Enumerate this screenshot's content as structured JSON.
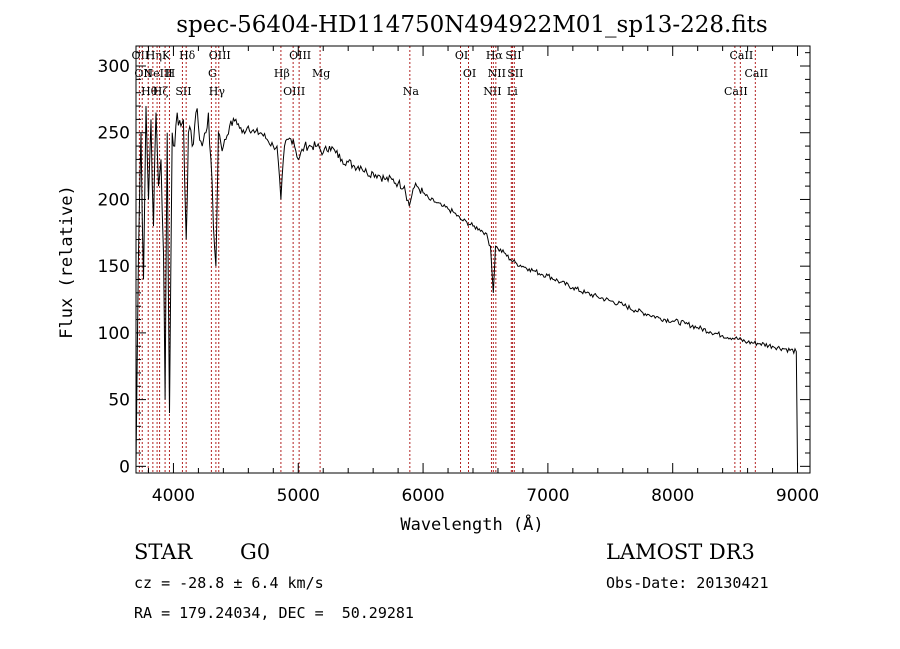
{
  "chart_data": {
    "type": "line",
    "title": "spec-56404-HD114750N494922M01_sp13-228.fits",
    "xlabel": "Wavelength (Å)",
    "ylabel": "Flux (relative)",
    "xlim": [
      3700,
      9100
    ],
    "ylim": [
      -5,
      315
    ],
    "x_ticks": [
      4000,
      5000,
      6000,
      7000,
      8000,
      9000
    ],
    "y_ticks": [
      0,
      50,
      100,
      150,
      200,
      250,
      300
    ],
    "series": [
      {
        "name": "spectrum",
        "x": [
          3700,
          3720,
          3740,
          3760,
          3780,
          3800,
          3820,
          3840,
          3860,
          3880,
          3900,
          3920,
          3933,
          3950,
          3968,
          3990,
          4010,
          4030,
          4060,
          4080,
          4102,
          4120,
          4150,
          4180,
          4200,
          4230,
          4260,
          4280,
          4300,
          4320,
          4340,
          4360,
          4400,
          4450,
          4500,
          4550,
          4600,
          4650,
          4700,
          4750,
          4800,
          4830,
          4861,
          4890,
          4920,
          4960,
          5000,
          5050,
          5100,
          5150,
          5200,
          5250,
          5300,
          5350,
          5400,
          5450,
          5500,
          5550,
          5600,
          5650,
          5700,
          5750,
          5800,
          5850,
          5890,
          5920,
          5950,
          6000,
          6050,
          6100,
          6150,
          6200,
          6250,
          6300,
          6350,
          6400,
          6450,
          6500,
          6540,
          6563,
          6580,
          6600,
          6650,
          6700,
          6750,
          6800,
          6850,
          6900,
          6950,
          7000,
          7100,
          7200,
          7300,
          7400,
          7500,
          7600,
          7700,
          7800,
          7900,
          8000,
          8100,
          8200,
          8300,
          8400,
          8500,
          8600,
          8700,
          8800,
          8900,
          8990,
          9000
        ],
        "y": [
          0,
          160,
          250,
          140,
          270,
          200,
          260,
          180,
          265,
          210,
          230,
          160,
          50,
          250,
          40,
          250,
          240,
          265,
          255,
          260,
          170,
          250,
          240,
          265,
          255,
          240,
          250,
          265,
          230,
          180,
          150,
          250,
          240,
          255,
          260,
          250,
          255,
          250,
          250,
          245,
          240,
          240,
          200,
          240,
          245,
          245,
          230,
          240,
          240,
          240,
          235,
          240,
          235,
          230,
          228,
          225,
          225,
          220,
          220,
          218,
          215,
          215,
          212,
          210,
          195,
          208,
          210,
          205,
          200,
          198,
          195,
          193,
          190,
          185,
          183,
          180,
          178,
          175,
          165,
          130,
          165,
          163,
          160,
          155,
          152,
          150,
          148,
          146,
          144,
          143,
          138,
          134,
          130,
          127,
          124,
          121,
          117,
          114,
          111,
          109,
          107,
          104,
          101,
          98,
          96,
          93,
          92,
          90,
          88,
          86,
          0
        ]
      }
    ],
    "line_markers": [
      {
        "wl": 3727,
        "labels": [
          "OII"
        ]
      },
      {
        "wl": 3750,
        "labels": [
          "OII"
        ]
      },
      {
        "wl": 3798,
        "labels": [
          "Hθ"
        ]
      },
      {
        "wl": 3835,
        "labels": [
          "Hη"
        ]
      },
      {
        "wl": 3869,
        "labels": [
          "NeIII"
        ]
      },
      {
        "wl": 3889,
        "labels": [
          "Hζ"
        ]
      },
      {
        "wl": 3933,
        "labels": [
          "K"
        ]
      },
      {
        "wl": 3968,
        "labels": [
          "H"
        ]
      },
      {
        "wl": 4072,
        "labels": [
          "SII"
        ]
      },
      {
        "wl": 4102,
        "labels": [
          "Hδ"
        ]
      },
      {
        "wl": 4304,
        "labels": [
          "G"
        ]
      },
      {
        "wl": 4340,
        "labels": [
          "Hγ"
        ]
      },
      {
        "wl": 4363,
        "labels": [
          "OIII"
        ]
      },
      {
        "wl": 4861,
        "labels": [
          "Hβ"
        ]
      },
      {
        "wl": 4959,
        "labels": [
          "OIII"
        ]
      },
      {
        "wl": 5007,
        "labels": [
          "OIII"
        ]
      },
      {
        "wl": 5175,
        "labels": [
          "Mg"
        ]
      },
      {
        "wl": 5894,
        "labels": [
          "Na"
        ]
      },
      {
        "wl": 6300,
        "labels": [
          "OI"
        ]
      },
      {
        "wl": 6364,
        "labels": [
          "OI"
        ]
      },
      {
        "wl": 6548,
        "labels": [
          "NII"
        ]
      },
      {
        "wl": 6563,
        "labels": [
          "Hα"
        ]
      },
      {
        "wl": 6583,
        "labels": [
          "NII"
        ]
      },
      {
        "wl": 6707,
        "labels": [
          "Li"
        ]
      },
      {
        "wl": 6716,
        "labels": [
          "SII"
        ]
      },
      {
        "wl": 6731,
        "labels": [
          "SII"
        ]
      },
      {
        "wl": 8498,
        "labels": [
          "CaII"
        ]
      },
      {
        "wl": 8542,
        "labels": [
          "CaII"
        ]
      },
      {
        "wl": 8662,
        "labels": [
          "CaII"
        ]
      }
    ]
  },
  "info": {
    "class_label": "STAR",
    "subclass": "G0",
    "survey": "LAMOST DR3",
    "redshift_text": "cz = -28.8 ± 6.4 km/s",
    "obs_date_text": "Obs-Date: 20130421",
    "coords_text": "RA = 179.24034, DEC =  50.29281"
  },
  "colors": {
    "spectrum": "#000000",
    "marker": "#b22222",
    "axes": "#000000"
  }
}
